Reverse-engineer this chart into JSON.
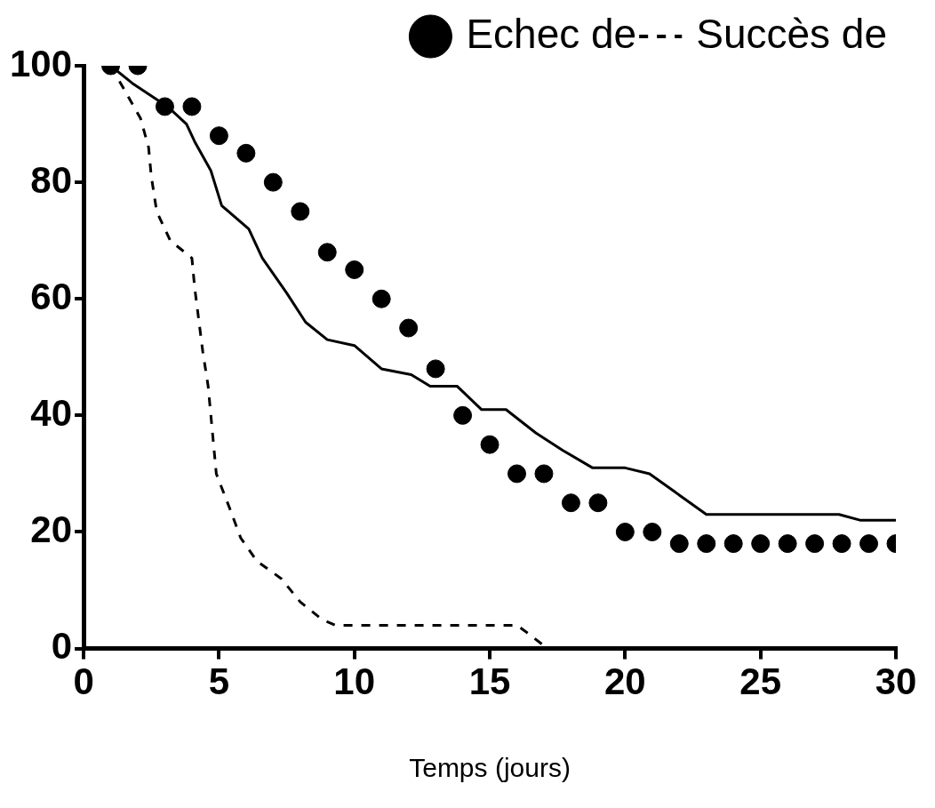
{
  "chart_data": {
    "type": "line",
    "xlabel": "Temps (jours)",
    "xlim": [
      0,
      30
    ],
    "xticks": [
      0,
      5,
      10,
      15,
      20,
      25,
      30
    ],
    "ylim": [
      0,
      100
    ],
    "yticks": [
      0,
      20,
      40,
      60,
      80,
      100
    ],
    "grid": false,
    "legend": "top right",
    "series": [
      {
        "name": "Echec de",
        "type": "scatter",
        "marker": "circle",
        "color": "#000000",
        "x": [
          1,
          2,
          3,
          4,
          5,
          6,
          7,
          8,
          9,
          10,
          11,
          12,
          13,
          14,
          15,
          16,
          17,
          18,
          19,
          20,
          21,
          22,
          23,
          24,
          25,
          26,
          27,
          28,
          29,
          30
        ],
        "values": [
          100,
          100,
          93,
          93,
          88,
          85,
          80,
          75,
          68,
          65,
          60,
          55,
          48,
          40,
          35,
          30,
          30,
          25,
          25,
          20,
          20,
          18,
          18,
          18,
          18,
          18,
          18,
          18,
          18,
          18
        ]
      },
      {
        "name": "Succès de",
        "line_style": "dashed",
        "marker": "none",
        "color": "#000000",
        "x": [
          1,
          2.1,
          2.4,
          2.5,
          2.7,
          3.2,
          4,
          4.1,
          4.4,
          4.6,
          4.8,
          4.9,
          5.4,
          5.8,
          6.4,
          7.3,
          8,
          8.8,
          9.3,
          16,
          16.3,
          17
        ],
        "values": [
          100,
          91,
          86,
          81,
          75,
          70,
          67,
          62,
          51,
          45,
          35,
          30,
          24,
          19,
          15,
          12,
          8,
          5,
          4,
          4,
          3,
          0.5
        ]
      },
      {
        "line_style": "solid",
        "marker": "none",
        "color": "#000000",
        "x": [
          1,
          1.8,
          3.1,
          3.8,
          4.1,
          4.7,
          5.1,
          6.1,
          6.6,
          7.5,
          8.2,
          9,
          10,
          11,
          12.1,
          12.8,
          13.8,
          14.7,
          15.6,
          16.7,
          17.7,
          18.8,
          20,
          20.9,
          21.8,
          23,
          27.9,
          28.7,
          30
        ],
        "values": [
          100,
          97,
          93,
          90,
          87,
          82,
          76,
          72,
          67,
          61,
          56,
          53,
          52,
          48,
          47,
          45,
          45,
          41,
          41,
          37,
          34,
          31,
          31,
          30,
          27,
          23,
          23,
          22,
          22
        ]
      }
    ]
  }
}
